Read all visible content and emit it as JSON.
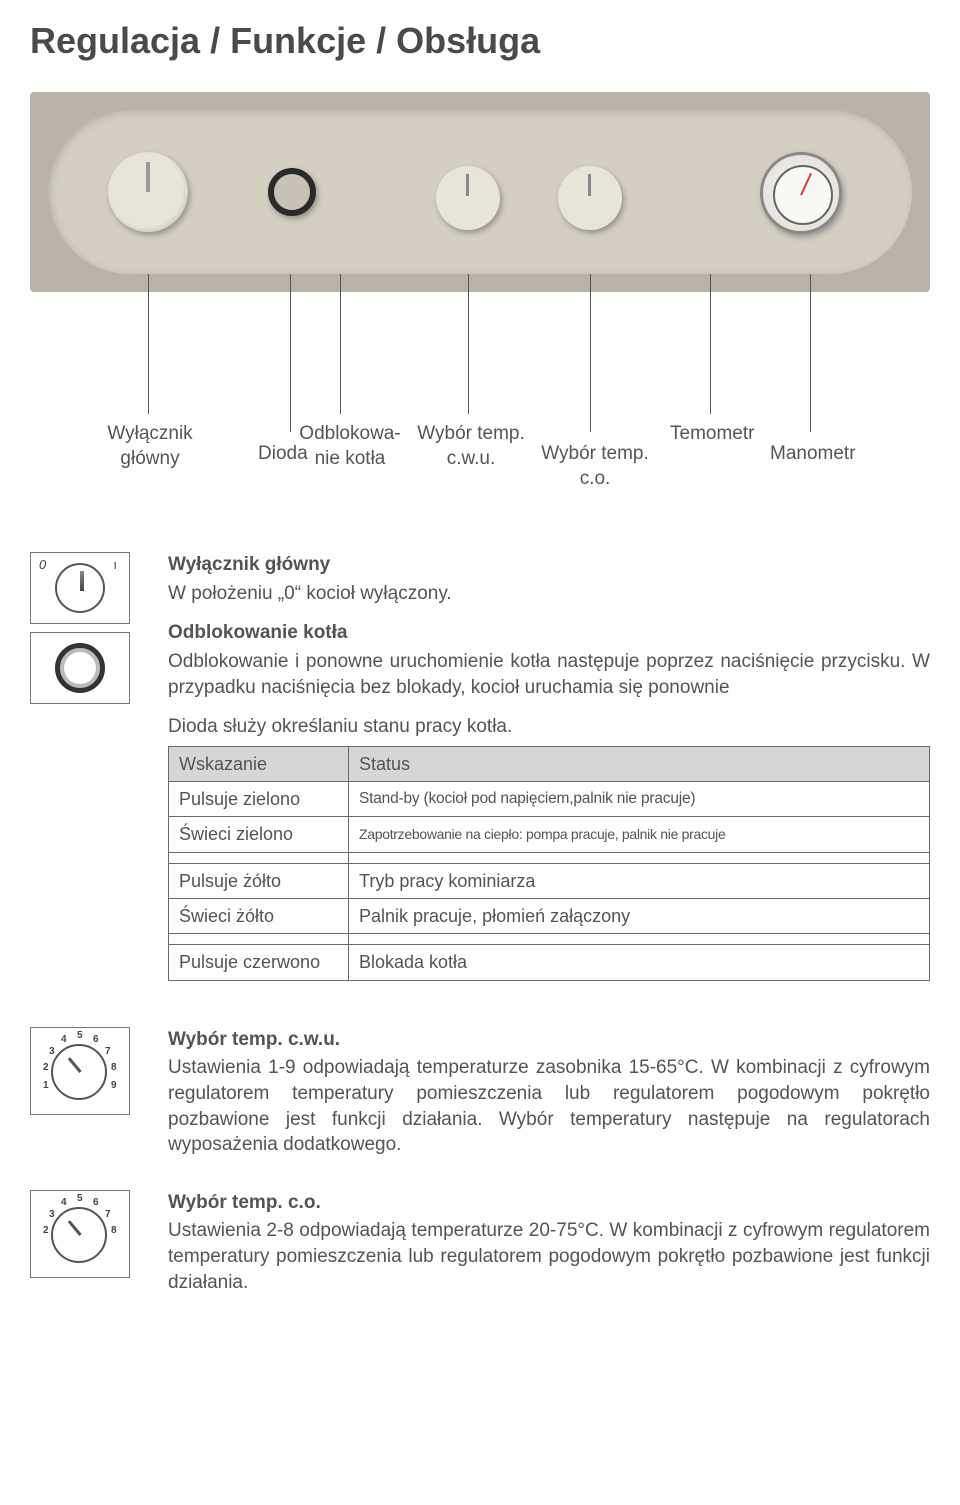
{
  "title": "Regulacja / Funkcje / Obsługa",
  "panel_labels": {
    "main_switch": "Wyłącznik\ngłówny",
    "diode": "Dioda",
    "unlock": "Odblokowa-\nnie kotła",
    "temp_cwu": "Wybór temp.\nc.w.u.",
    "temp_co": "Wybór temp.\nc.o.",
    "thermo": "Temometr",
    "mano": "Manometr"
  },
  "sections": {
    "main_switch": {
      "title": "Wyłącznik główny",
      "body": "W położeniu „0“ kocioł wyłączony."
    },
    "unlock": {
      "title": "Odblokowanie kotła",
      "body": "Odblokowanie i ponowne uruchomienie kotła następuje poprzez naciśnięcie przycisku. W przypadku naciśnięcia bez blokady, kocioł uruchamia się ponownie"
    },
    "diode_line": "Dioda służy określaniu stanu pracy kotła.",
    "table_headers": {
      "c1": "Wskazanie",
      "c2": "Status"
    },
    "table_rows": [
      {
        "c1": "Pulsuje zielono",
        "c2": "Stand-by (kocioł pod napięciem,palnik nie pracuje)",
        "c2_class": "small-txt"
      },
      {
        "c1": "Świeci zielono",
        "c2": "Zapotrzebowanie na ciepło: pompa pracuje, palnik nie pracuje",
        "c2_class": "smaller-txt"
      },
      {
        "c1": "Pulsuje żółto",
        "c2": "Tryb pracy kominiarza",
        "gap_before": true
      },
      {
        "c1": "Świeci żółto",
        "c2": "Palnik pracuje, płomień załączony"
      },
      {
        "c1": "Pulsuje czerwono",
        "c2": "Blokada kotła",
        "gap_before": true
      }
    ],
    "cwu": {
      "title": "Wybór temp. c.w.u.",
      "body": "Ustawienia 1-9 odpowiadają temperaturze zasobnika 15-65°C. W kombinacji z cyfrowym regulatorem temperatury pomieszczenia lub regulatorem pogodowym pokrętło pozbawione jest funkcji działania. Wybór temperatury następuje na regulatorach wyposażenia dodatkowego."
    },
    "co": {
      "title": "Wybór temp. c.o.",
      "body": "Ustawienia 2-8 odpowiadają temperaturze 20-75°C. W kombinacji z cyfrowym regulatorem temperatury pomieszczenia lub regulatorem pogodowym pokrętło pozbawione jest funkcji działania."
    }
  },
  "colors": {
    "text": "#545454",
    "table_header_bg": "#d6d6d6",
    "border": "#6a6a6a",
    "panel_bg": "#b8b3a6",
    "panel_inner": "#d4cfc2"
  }
}
